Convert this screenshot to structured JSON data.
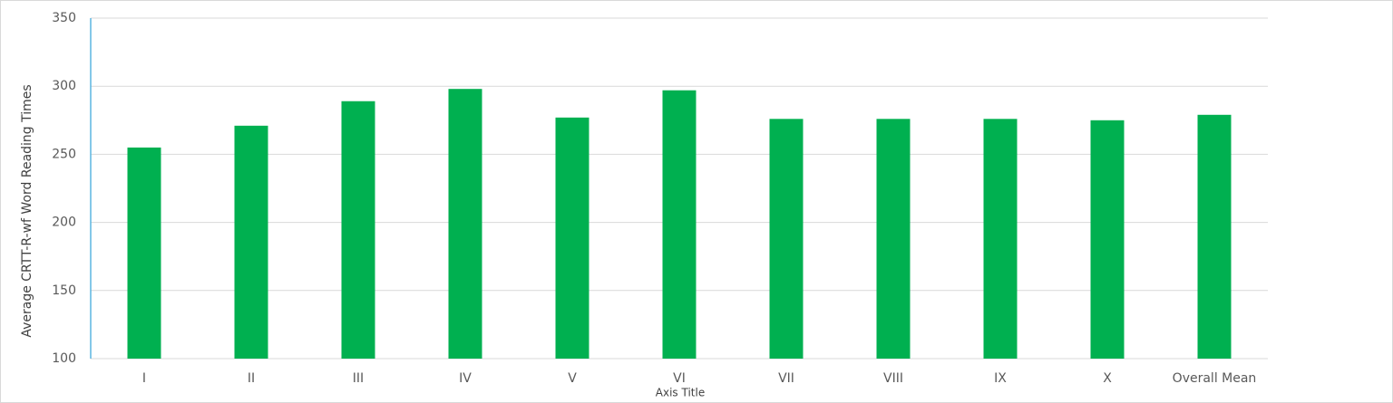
{
  "chart_data": {
    "type": "bar",
    "x_label": "Axis Title",
    "y_label": "Average CRTT-R-wf Word Reading Times",
    "categories": [
      "I",
      "II",
      "III",
      "IV",
      "V",
      "VI",
      "VII",
      "VIII",
      "IX",
      "X",
      "Overall Mean"
    ],
    "values": [
      255,
      271,
      289,
      298,
      277,
      297,
      276,
      276,
      276,
      275,
      279
    ],
    "color": "#00b050",
    "ylim": [
      100,
      350
    ],
    "yticks": [
      100,
      150,
      200,
      250,
      300,
      350
    ],
    "grid": true
  }
}
